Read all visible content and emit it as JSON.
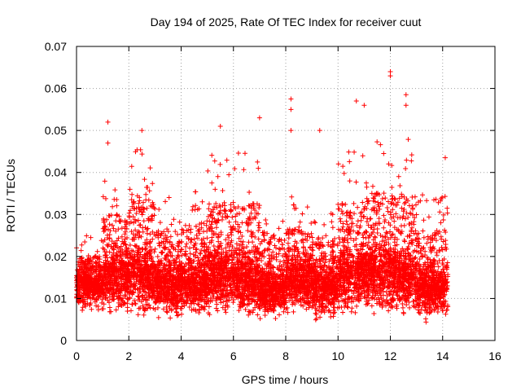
{
  "chart_data": {
    "type": "scatter",
    "title": "Day 194 of 2025, Rate Of TEC Index for receiver cuut",
    "xlabel": "GPS time / hours",
    "ylabel": "ROTI / TECUs",
    "xlim": [
      0,
      16
    ],
    "ylim": [
      0,
      0.07
    ],
    "xticks": [
      0,
      2,
      4,
      6,
      8,
      10,
      12,
      14,
      16
    ],
    "yticks": [
      0,
      0.01,
      0.02,
      0.03,
      0.04,
      0.05,
      0.06,
      0.07
    ],
    "xtick_labels": [
      "0",
      "2",
      "4",
      "6",
      "8",
      "10",
      "12",
      "14",
      "16"
    ],
    "ytick_labels": [
      "0",
      "0.01",
      "0.02",
      "0.03",
      "0.04",
      "0.05",
      "0.06",
      "0.07"
    ],
    "grid": true,
    "marker": "+",
    "color": "#ff0000",
    "x_range_of_data": [
      0,
      14.2
    ],
    "notable_points": [
      {
        "x": 1.2,
        "y": 0.052
      },
      {
        "x": 1.2,
        "y": 0.047
      },
      {
        "x": 2.5,
        "y": 0.05
      },
      {
        "x": 5.5,
        "y": 0.051
      },
      {
        "x": 7.0,
        "y": 0.053
      },
      {
        "x": 8.2,
        "y": 0.0575
      },
      {
        "x": 8.2,
        "y": 0.055
      },
      {
        "x": 8.2,
        "y": 0.05
      },
      {
        "x": 9.3,
        "y": 0.05
      },
      {
        "x": 10.7,
        "y": 0.057
      },
      {
        "x": 11.0,
        "y": 0.056
      },
      {
        "x": 12.0,
        "y": 0.064
      },
      {
        "x": 12.0,
        "y": 0.063
      },
      {
        "x": 12.6,
        "y": 0.0585
      },
      {
        "x": 12.6,
        "y": 0.056
      },
      {
        "x": 14.1,
        "y": 0.0435
      }
    ],
    "bands": [
      {
        "x_start": 0.0,
        "x_end": 1.0,
        "y_low": 0.006,
        "y_mid": 0.013,
        "y_high": 0.025
      },
      {
        "x_start": 1.0,
        "x_end": 2.0,
        "y_low": 0.005,
        "y_mid": 0.015,
        "y_high": 0.04
      },
      {
        "x_start": 2.0,
        "x_end": 3.0,
        "y_low": 0.005,
        "y_mid": 0.015,
        "y_high": 0.046
      },
      {
        "x_start": 3.0,
        "x_end": 4.0,
        "y_low": 0.004,
        "y_mid": 0.013,
        "y_high": 0.035
      },
      {
        "x_start": 4.0,
        "x_end": 5.0,
        "y_low": 0.004,
        "y_mid": 0.013,
        "y_high": 0.038
      },
      {
        "x_start": 5.0,
        "x_end": 6.0,
        "y_low": 0.005,
        "y_mid": 0.015,
        "y_high": 0.045
      },
      {
        "x_start": 6.0,
        "x_end": 7.0,
        "y_low": 0.004,
        "y_mid": 0.014,
        "y_high": 0.045
      },
      {
        "x_start": 7.0,
        "x_end": 8.0,
        "y_low": 0.004,
        "y_mid": 0.012,
        "y_high": 0.035
      },
      {
        "x_start": 8.0,
        "x_end": 9.0,
        "y_low": 0.005,
        "y_mid": 0.014,
        "y_high": 0.035
      },
      {
        "x_start": 9.0,
        "x_end": 10.0,
        "y_low": 0.004,
        "y_mid": 0.012,
        "y_high": 0.033
      },
      {
        "x_start": 10.0,
        "x_end": 11.0,
        "y_low": 0.005,
        "y_mid": 0.015,
        "y_high": 0.045
      },
      {
        "x_start": 11.0,
        "x_end": 12.0,
        "y_low": 0.005,
        "y_mid": 0.016,
        "y_high": 0.048
      },
      {
        "x_start": 12.0,
        "x_end": 13.0,
        "y_low": 0.005,
        "y_mid": 0.015,
        "y_high": 0.048
      },
      {
        "x_start": 13.0,
        "x_end": 14.2,
        "y_low": 0.004,
        "y_mid": 0.012,
        "y_high": 0.035
      }
    ]
  }
}
